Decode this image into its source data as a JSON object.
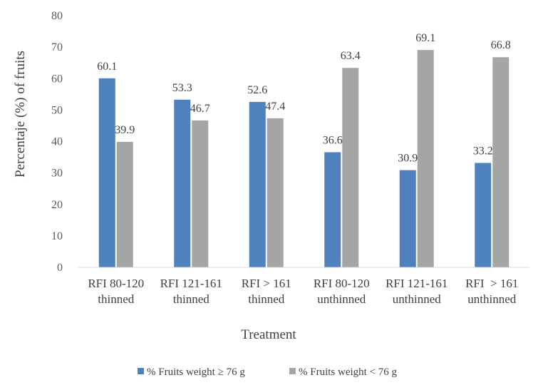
{
  "chart_data": {
    "type": "bar",
    "categories": [
      [
        "RFI 80-120",
        "thinned"
      ],
      [
        "RFI 121-161",
        "thinned"
      ],
      [
        "RFI > 161",
        "thinned"
      ],
      [
        "RFI 80-120",
        "unthinned"
      ],
      [
        "RFI 121-161",
        "unthinned"
      ],
      [
        "RFI  > 161",
        "unthinned"
      ]
    ],
    "series": [
      {
        "name": "% Fruits weight ≥ 76 g",
        "color": "#4f81bd",
        "values": [
          60.1,
          53.3,
          52.6,
          36.6,
          30.9,
          33.2
        ]
      },
      {
        "name": "% Fruits weight < 76 g",
        "color": "#a5a5a5",
        "values": [
          39.9,
          46.7,
          47.4,
          63.4,
          69.1,
          66.8
        ]
      }
    ],
    "xlabel": "Treatment",
    "ylabel": "Percentaje (%) of fruits",
    "ylim": [
      0,
      80
    ],
    "yticks": [
      0,
      10,
      20,
      30,
      40,
      50,
      60,
      70,
      80
    ],
    "grid": false,
    "legend_position": "bottom"
  }
}
